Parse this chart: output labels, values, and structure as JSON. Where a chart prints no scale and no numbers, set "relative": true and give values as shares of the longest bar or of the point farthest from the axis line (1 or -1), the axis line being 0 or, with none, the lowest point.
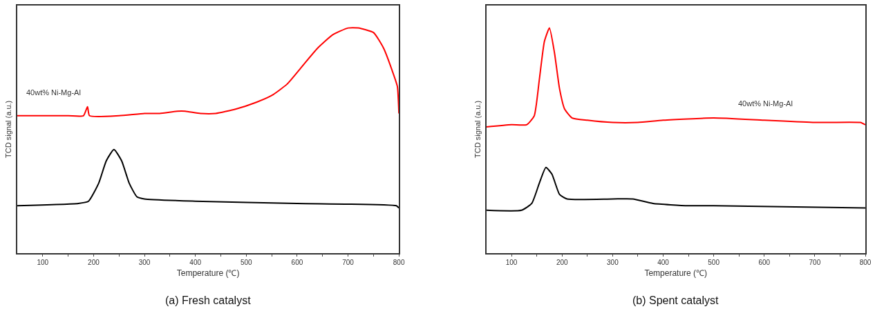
{
  "chart_data": [
    {
      "type": "line",
      "title": "(a) Fresh catalyst",
      "xlabel": "Temperature (℃)",
      "ylabel": "TCD signal (a.u.)",
      "relative": true,
      "xlim": [
        50,
        800
      ],
      "xticks": [
        100,
        {
          "value": 150,
          "label": null
        },
        200,
        {
          "value": 250,
          "label": null
        },
        300,
        {
          "value": 350,
          "label": null
        },
        400,
        {
          "value": 450,
          "label": null
        },
        500,
        {
          "value": 550,
          "label": null
        },
        600,
        {
          "value": 650,
          "label": null
        },
        700,
        {
          "value": 750,
          "label": null
        },
        800
      ],
      "line_style": "solid",
      "marker": "none",
      "legend": false,
      "series": [
        {
          "name": "40wt% Ni-Mg-Al",
          "color": "#ff0000",
          "x": [
            50,
            150,
            180,
            188,
            192,
            250,
            300,
            330,
            365,
            380,
            410,
            440,
            480,
            520,
            550,
            580,
            610,
            640,
            670,
            700,
            720,
            750,
            770,
            790,
            797,
            800
          ],
          "values": [
            0.61,
            0.61,
            0.61,
            0.65,
            0.61,
            0.61,
            0.62,
            0.62,
            0.63,
            0.63,
            0.62,
            0.62,
            0.64,
            0.67,
            0.7,
            0.75,
            0.83,
            0.91,
            0.97,
            1.0,
            1.0,
            0.98,
            0.91,
            0.79,
            0.74,
            0.62
          ]
        },
        {
          "color": "#000000",
          "x": [
            50,
            170,
            190,
            210,
            225,
            240,
            255,
            270,
            285,
            300,
            400,
            600,
            795,
            800
          ],
          "values": [
            0.21,
            0.22,
            0.23,
            0.31,
            0.41,
            0.46,
            0.41,
            0.31,
            0.25,
            0.24,
            0.23,
            0.22,
            0.21,
            0.2
          ]
        }
      ]
    },
    {
      "type": "line",
      "title": "(b) Spent catalyst",
      "xlabel": "Temperature (℃)",
      "ylabel": "TCD signal (a.u.)",
      "relative": true,
      "xlim": [
        50,
        800
      ],
      "xticks": [
        100,
        {
          "value": 150,
          "label": null
        },
        200,
        {
          "value": 250,
          "label": null
        },
        300,
        {
          "value": 350,
          "label": null
        },
        400,
        {
          "value": 450,
          "label": null
        },
        500,
        {
          "value": 550,
          "label": null
        },
        600,
        {
          "value": 650,
          "label": null
        },
        700,
        {
          "value": 750,
          "label": null
        },
        800
      ],
      "line_style": "solid",
      "marker": "none",
      "legend": false,
      "series": [
        {
          "name": "40wt% Ni-Mg-Al",
          "color": "#ff0000",
          "x": [
            50,
            100,
            130,
            145,
            155,
            165,
            175,
            185,
            195,
            205,
            220,
            250,
            300,
            350,
            400,
            500,
            600,
            700,
            790,
            800
          ],
          "values": [
            0.56,
            0.57,
            0.57,
            0.61,
            0.77,
            0.94,
            1.0,
            0.89,
            0.73,
            0.64,
            0.6,
            0.59,
            0.58,
            0.58,
            0.59,
            0.6,
            0.59,
            0.58,
            0.58,
            0.57
          ]
        },
        {
          "color": "#000000",
          "x": [
            50,
            120,
            140,
            155,
            168,
            180,
            195,
            210,
            300,
            340,
            380,
            450,
            500,
            800
          ],
          "values": [
            0.19,
            0.19,
            0.22,
            0.31,
            0.38,
            0.35,
            0.26,
            0.24,
            0.24,
            0.24,
            0.22,
            0.21,
            0.21,
            0.2
          ]
        }
      ]
    }
  ]
}
